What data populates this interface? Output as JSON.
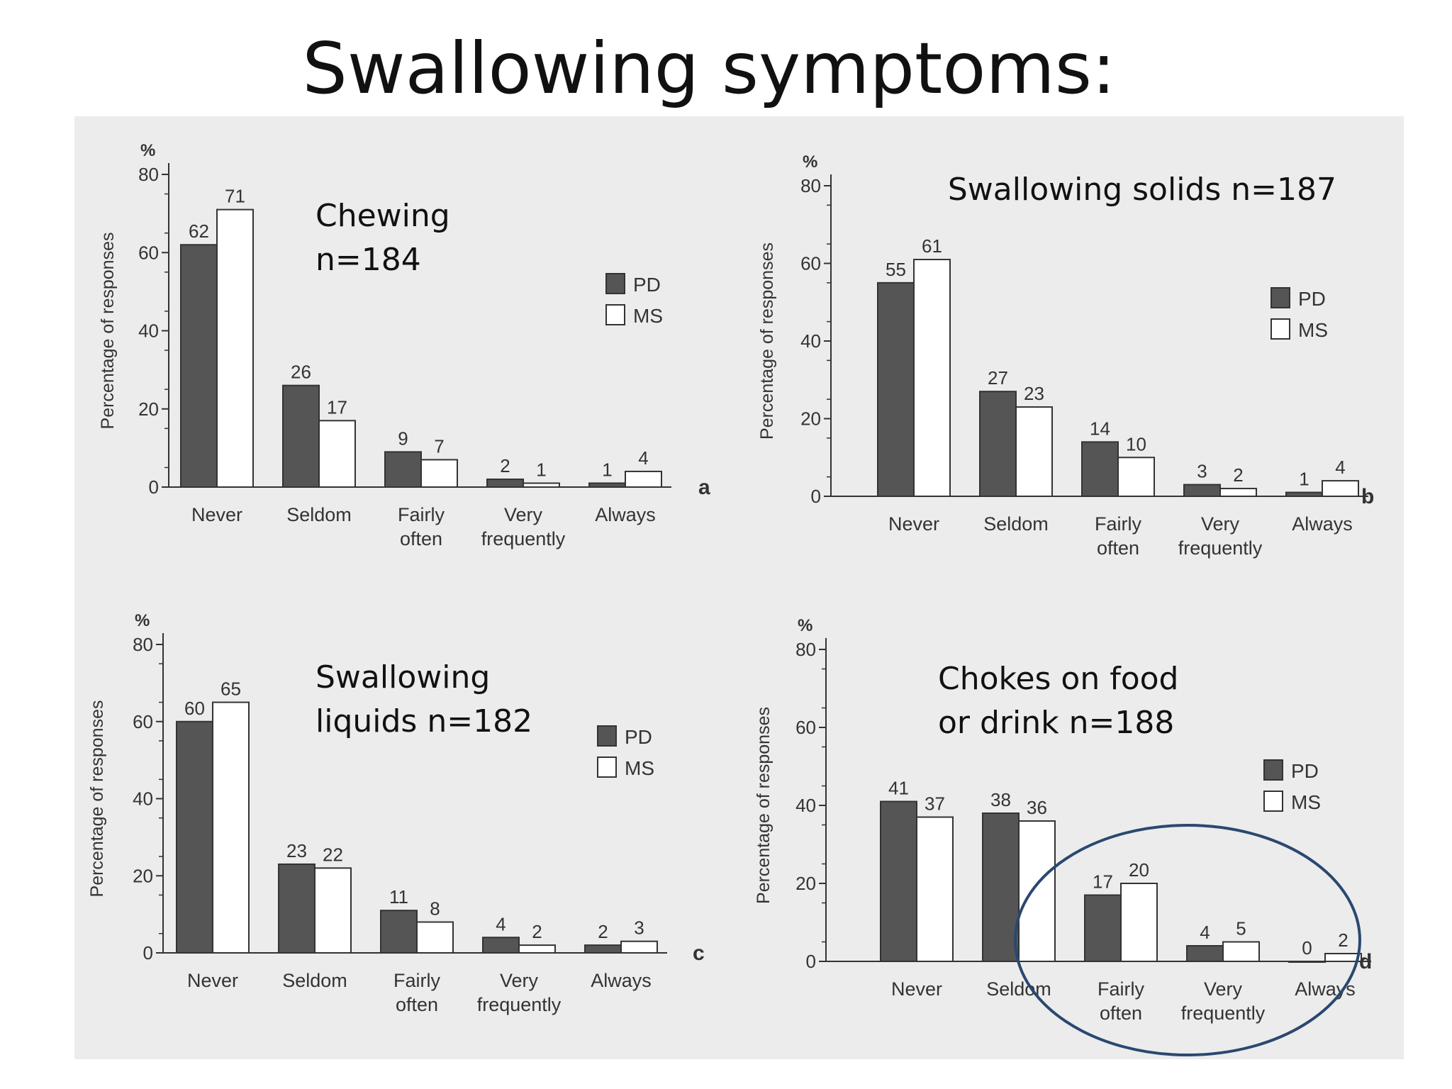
{
  "slide": {
    "title": "Swallowing symptoms:"
  },
  "colors": {
    "pd": "#555555",
    "ms": "#ffffff",
    "ink": "#333333",
    "panel_bg": "#ececec",
    "circle": "#2a4870"
  },
  "chart_data": [
    {
      "type": "bar",
      "title": "Chewing n=184",
      "title_lines": [
        "Chewing",
        "n=184"
      ],
      "panel_letter": "a",
      "ylabel": "Percentage of responses",
      "yunit": "%",
      "ylim": [
        0,
        80
      ],
      "yticks": [
        "0",
        "20",
        "40",
        "60",
        "80"
      ],
      "categories": [
        [
          "Never"
        ],
        [
          "Seldom"
        ],
        [
          "Fairly",
          "often"
        ],
        [
          "Very",
          "frequently"
        ],
        [
          "Always"
        ]
      ],
      "series": [
        {
          "name": "PD",
          "values": [
            62,
            26,
            9,
            2,
            1
          ]
        },
        {
          "name": "MS",
          "values": [
            71,
            17,
            7,
            1,
            4
          ]
        }
      ],
      "legend": [
        "PD",
        "MS"
      ],
      "legend_position": "right",
      "grid": false
    },
    {
      "type": "bar",
      "title": "Swallowing solids n=187",
      "title_lines": [
        "Swallowing solids n=187"
      ],
      "panel_letter": "b",
      "ylabel": "Percentage of responses",
      "yunit": "%",
      "ylim": [
        0,
        80
      ],
      "yticks": [
        "0",
        "20",
        "40",
        "60",
        "80"
      ],
      "categories": [
        [
          "Never"
        ],
        [
          "Seldom"
        ],
        [
          "Fairly",
          "often"
        ],
        [
          "Very",
          "frequently"
        ],
        [
          "Always"
        ]
      ],
      "series": [
        {
          "name": "PD",
          "values": [
            55,
            27,
            14,
            3,
            1
          ]
        },
        {
          "name": "MS",
          "values": [
            61,
            23,
            10,
            2,
            4
          ]
        }
      ],
      "legend": [
        "PD",
        "MS"
      ],
      "legend_position": "right",
      "grid": false
    },
    {
      "type": "bar",
      "title": "Swallowing liquids n=182",
      "title_lines": [
        "Swallowing",
        "liquids n=182"
      ],
      "panel_letter": "c",
      "ylabel": "Percentage of responses",
      "yunit": "%",
      "ylim": [
        0,
        80
      ],
      "yticks": [
        "0",
        "20",
        "40",
        "60",
        "80"
      ],
      "categories": [
        [
          "Never"
        ],
        [
          "Seldom"
        ],
        [
          "Fairly",
          "often"
        ],
        [
          "Very",
          "frequently"
        ],
        [
          "Always"
        ]
      ],
      "series": [
        {
          "name": "PD",
          "values": [
            60,
            23,
            11,
            4,
            2
          ]
        },
        {
          "name": "MS",
          "values": [
            65,
            22,
            8,
            2,
            3
          ]
        }
      ],
      "legend": [
        "PD",
        "MS"
      ],
      "legend_position": "right",
      "grid": false
    },
    {
      "type": "bar",
      "title": "Chokes on food or drink n=188",
      "title_lines": [
        "Chokes on food",
        "or drink n=188"
      ],
      "panel_letter": "d",
      "ylabel": "Percentage of responses",
      "yunit": "%",
      "ylim": [
        0,
        80
      ],
      "yticks": [
        "0",
        "20",
        "40",
        "60",
        "80"
      ],
      "categories": [
        [
          "Never"
        ],
        [
          "Seldom"
        ],
        [
          "Fairly",
          "often"
        ],
        [
          "Very",
          "frequently"
        ],
        [
          "Always"
        ]
      ],
      "series": [
        {
          "name": "PD",
          "values": [
            41,
            38,
            17,
            4,
            0
          ]
        },
        {
          "name": "MS",
          "values": [
            37,
            36,
            20,
            5,
            2
          ]
        }
      ],
      "legend": [
        "PD",
        "MS"
      ],
      "legend_position": "right",
      "grid": false,
      "highlight": "circle around Fairly often, Very frequently, Always"
    }
  ]
}
